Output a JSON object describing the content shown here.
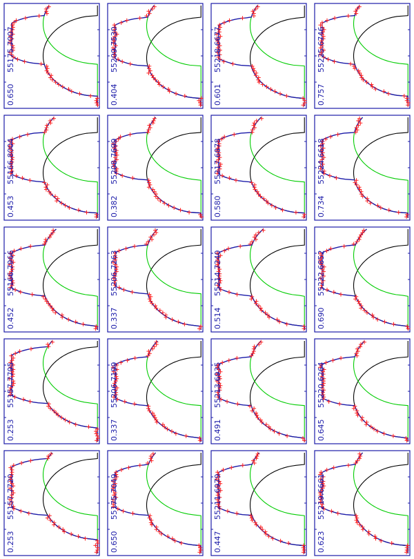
{
  "figure": {
    "grid": {
      "rows": 5,
      "cols": 4,
      "orientation": "rotated-90-ccw"
    },
    "colors": {
      "frame": "#1a1aa8",
      "text": "#1a1aa8",
      "observed": "#ff2020",
      "model": "#1a1aa8",
      "component_a": "#000000",
      "component_b": "#00cc00",
      "ticks": "#1a1aa8"
    }
  },
  "chart_data": [
    {
      "type": "line",
      "date_label": "55175.7007",
      "phase_label": "0.650",
      "shape": {
        "center": 0.33,
        "half_width": 0.5,
        "floor": 0.98,
        "depth": 0.92,
        "primary_center": 0.5,
        "primary_half_width": 0.4,
        "secondary_center": 0.18,
        "secondary_half_width": 0.4
      },
      "legend": "none"
    },
    {
      "type": "line",
      "date_label": "55209.7530",
      "phase_label": "0.404",
      "shape": {
        "center": 0.33,
        "half_width": 0.5,
        "floor": 0.98,
        "depth": 0.92,
        "primary_center": 0.52,
        "primary_half_width": 0.4,
        "secondary_center": 0.2,
        "secondary_half_width": 0.4
      },
      "legend": "none"
    },
    {
      "type": "line",
      "date_label": "55218.6677",
      "phase_label": "0.601",
      "shape": {
        "center": 0.34,
        "half_width": 0.5,
        "floor": 0.98,
        "depth": 0.92,
        "primary_center": 0.52,
        "primary_half_width": 0.4,
        "secondary_center": 0.2,
        "secondary_half_width": 0.4
      },
      "legend": "none"
    },
    {
      "type": "line",
      "date_label": "55225.6746",
      "phase_label": "0.757",
      "shape": {
        "center": 0.34,
        "half_width": 0.5,
        "floor": 0.98,
        "depth": 0.92,
        "primary_center": 0.5,
        "primary_half_width": 0.4,
        "secondary_center": 0.18,
        "secondary_half_width": 0.4
      },
      "legend": "none"
    },
    {
      "type": "line",
      "date_label": "55166.8004",
      "phase_label": "0.453",
      "shape": {
        "center": 0.4,
        "half_width": 0.5,
        "floor": 0.98,
        "depth": 0.92,
        "primary_center": 0.55,
        "primary_half_width": 0.4,
        "secondary_center": 0.24,
        "secondary_half_width": 0.4
      },
      "legend": "none"
    },
    {
      "type": "line",
      "date_label": "55208.7699",
      "phase_label": "0.382",
      "shape": {
        "center": 0.38,
        "half_width": 0.5,
        "floor": 0.98,
        "depth": 0.92,
        "primary_center": 0.55,
        "primary_half_width": 0.4,
        "secondary_center": 0.22,
        "secondary_half_width": 0.4
      },
      "legend": "none"
    },
    {
      "type": "line",
      "date_label": "55217.6878",
      "phase_label": "0.580",
      "shape": {
        "center": 0.4,
        "half_width": 0.5,
        "floor": 0.98,
        "depth": 0.92,
        "primary_center": 0.55,
        "primary_half_width": 0.4,
        "secondary_center": 0.24,
        "secondary_half_width": 0.4
      },
      "legend": "none"
    },
    {
      "type": "line",
      "date_label": "55224.6618",
      "phase_label": "0.734",
      "shape": {
        "center": 0.38,
        "half_width": 0.5,
        "floor": 0.98,
        "depth": 0.92,
        "primary_center": 0.55,
        "primary_half_width": 0.4,
        "secondary_center": 0.22,
        "secondary_half_width": 0.4
      },
      "legend": "none"
    },
    {
      "type": "line",
      "date_label": "55166.7966",
      "phase_label": "0.452",
      "shape": {
        "center": 0.42,
        "half_width": 0.5,
        "floor": 0.98,
        "depth": 0.92,
        "primary_center": 0.56,
        "primary_half_width": 0.4,
        "secondary_center": 0.26,
        "secondary_half_width": 0.4
      },
      "legend": "none"
    },
    {
      "type": "line",
      "date_label": "55206.7263",
      "phase_label": "0.337",
      "shape": {
        "center": 0.4,
        "half_width": 0.5,
        "floor": 0.98,
        "depth": 0.92,
        "primary_center": 0.56,
        "primary_half_width": 0.4,
        "secondary_center": 0.24,
        "secondary_half_width": 0.4
      },
      "legend": "none"
    },
    {
      "type": "line",
      "date_label": "55214.7240",
      "phase_label": "0.514",
      "shape": {
        "center": 0.42,
        "half_width": 0.5,
        "floor": 0.98,
        "depth": 0.92,
        "primary_center": 0.56,
        "primary_half_width": 0.4,
        "secondary_center": 0.26,
        "secondary_half_width": 0.4
      },
      "legend": "none"
    },
    {
      "type": "line",
      "date_label": "55222.6852",
      "phase_label": "0.690",
      "shape": {
        "center": 0.42,
        "half_width": 0.5,
        "floor": 0.98,
        "depth": 0.92,
        "primary_center": 0.56,
        "primary_half_width": 0.4,
        "secondary_center": 0.26,
        "secondary_half_width": 0.4
      },
      "legend": "none"
    },
    {
      "type": "line",
      "date_label": "55157.7795",
      "phase_label": "0.253",
      "shape": {
        "center": 0.36,
        "half_width": 0.5,
        "floor": 0.98,
        "depth": 0.92,
        "primary_center": 0.46,
        "primary_half_width": 0.4,
        "secondary_center": 0.22,
        "secondary_half_width": 0.4
      },
      "legend": "none"
    },
    {
      "type": "line",
      "date_label": "55206.7199",
      "phase_label": "0.337",
      "shape": {
        "center": 0.4,
        "half_width": 0.5,
        "floor": 0.98,
        "depth": 0.92,
        "primary_center": 0.56,
        "primary_half_width": 0.4,
        "secondary_center": 0.24,
        "secondary_half_width": 0.4
      },
      "legend": "none"
    },
    {
      "type": "line",
      "date_label": "55213.6935",
      "phase_label": "0.491",
      "shape": {
        "center": 0.4,
        "half_width": 0.5,
        "floor": 0.98,
        "depth": 0.92,
        "primary_center": 0.56,
        "primary_half_width": 0.4,
        "secondary_center": 0.24,
        "secondary_half_width": 0.4
      },
      "legend": "none"
    },
    {
      "type": "line",
      "date_label": "55220.6264",
      "phase_label": "0.645",
      "shape": {
        "center": 0.4,
        "half_width": 0.5,
        "floor": 0.98,
        "depth": 0.92,
        "primary_center": 0.56,
        "primary_half_width": 0.4,
        "secondary_center": 0.24,
        "secondary_half_width": 0.4
      },
      "legend": "none"
    },
    {
      "type": "line",
      "date_label": "55157.7720",
      "phase_label": "0.253",
      "shape": {
        "center": 0.36,
        "half_width": 0.5,
        "floor": 0.98,
        "depth": 0.92,
        "primary_center": 0.46,
        "primary_half_width": 0.4,
        "secondary_center": 0.22,
        "secondary_half_width": 0.4
      },
      "legend": "none"
    },
    {
      "type": "line",
      "date_label": "55175.7049",
      "phase_label": "0.650",
      "shape": {
        "center": 0.38,
        "half_width": 0.5,
        "floor": 0.98,
        "depth": 0.92,
        "primary_center": 0.52,
        "primary_half_width": 0.4,
        "secondary_center": 0.22,
        "secondary_half_width": 0.4
      },
      "legend": "none"
    },
    {
      "type": "line",
      "date_label": "55211.6979",
      "phase_label": "0.447",
      "shape": {
        "center": 0.38,
        "half_width": 0.5,
        "floor": 0.98,
        "depth": 0.92,
        "primary_center": 0.52,
        "primary_half_width": 0.4,
        "secondary_center": 0.22,
        "secondary_half_width": 0.4
      },
      "legend": "none"
    },
    {
      "type": "line",
      "date_label": "55219.6661",
      "phase_label": "0.623",
      "shape": {
        "center": 0.38,
        "half_width": 0.5,
        "floor": 0.98,
        "depth": 0.92,
        "primary_center": 0.52,
        "primary_half_width": 0.4,
        "secondary_center": 0.22,
        "secondary_half_width": 0.4
      },
      "legend": "none"
    }
  ]
}
